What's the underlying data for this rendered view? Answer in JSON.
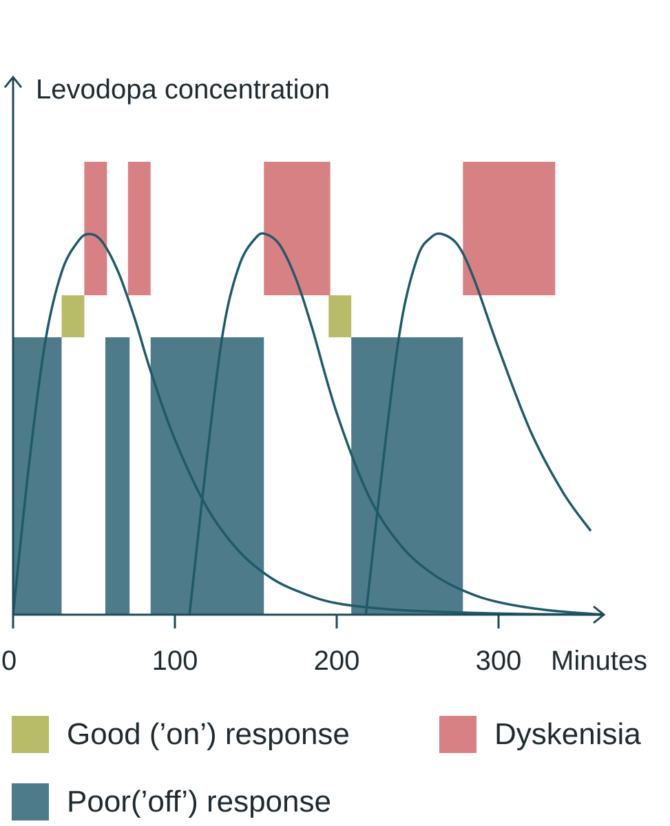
{
  "chart_data": {
    "type": "area",
    "ylabel": "Levodopa concentration",
    "xlabel": "Minutes",
    "xlim": [
      0,
      365
    ],
    "x_ticks": [
      0,
      100,
      200,
      300
    ],
    "y_ticks": [],
    "grid": false,
    "colors": {
      "axis": "#1f4a57",
      "curve": "#1f5a68",
      "good": "#b8bb68",
      "poor": "#4d7b8a",
      "dyskinesia": "#d88184"
    },
    "series": [
      {
        "name": "Good ('on') response",
        "color_key": "good",
        "intervals": [
          [
            30,
            44
          ],
          [
            195,
            209
          ]
        ]
      },
      {
        "name": "Poor('off') response",
        "color_key": "poor",
        "intervals": [
          [
            0,
            30
          ],
          [
            57,
            72
          ],
          [
            85,
            155
          ],
          [
            209,
            278
          ]
        ]
      },
      {
        "name": "Dyskenisia",
        "color_key": "dyskinesia",
        "intervals": [
          [
            44,
            58
          ],
          [
            71,
            85
          ],
          [
            155,
            196
          ],
          [
            278,
            335
          ]
        ]
      }
    ],
    "curves": [
      {
        "x": [
          0,
          10,
          20,
          30,
          40,
          47,
          55,
          65,
          75,
          85,
          100,
          120,
          140,
          160,
          180,
          200,
          230,
          260,
          300,
          330,
          365
        ],
        "y": [
          0,
          0.4,
          0.72,
          0.9,
          0.98,
          1.0,
          0.98,
          0.9,
          0.78,
          0.64,
          0.46,
          0.28,
          0.165,
          0.095,
          0.055,
          0.03,
          0.015,
          0.008,
          0.003,
          0.001,
          0
        ]
      },
      {
        "x": [
          109,
          120,
          130,
          140,
          150,
          156,
          165,
          175,
          185,
          200,
          220,
          240,
          260,
          280,
          300,
          330,
          365
        ],
        "y": [
          0,
          0.42,
          0.75,
          0.92,
          0.99,
          1.0,
          0.97,
          0.88,
          0.75,
          0.53,
          0.31,
          0.18,
          0.105,
          0.06,
          0.033,
          0.012,
          0
        ]
      },
      {
        "x": [
          218,
          230,
          240,
          250,
          258,
          265,
          275,
          285,
          300,
          320,
          340,
          357
        ],
        "y": [
          0,
          0.45,
          0.77,
          0.94,
          0.99,
          1.0,
          0.97,
          0.88,
          0.7,
          0.48,
          0.32,
          0.22
        ]
      }
    ]
  },
  "legend": {
    "good_label": "Good (’on’) response",
    "dyskinesia_label": "Dyskenisia",
    "poor_label": "Poor(’off’) response"
  }
}
